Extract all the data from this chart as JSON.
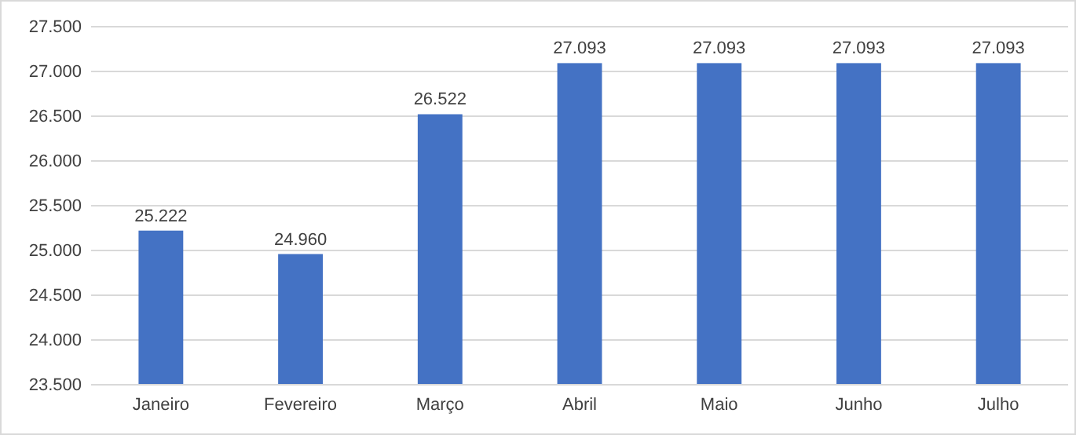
{
  "chart_data": {
    "type": "bar",
    "categories": [
      "Janeiro",
      "Fevereiro",
      "Março",
      "Abril",
      "Maio",
      "Junho",
      "Julho"
    ],
    "values": [
      25222,
      24960,
      26522,
      27093,
      27093,
      27093,
      27093
    ],
    "value_labels": [
      "25.222",
      "24.960",
      "26.522",
      "27.093",
      "27.093",
      "27.093",
      "27.093"
    ],
    "color": "#4472c4",
    "ylim": [
      23500,
      27500
    ],
    "yticks": [
      {
        "value": 23500,
        "label": "23.500"
      },
      {
        "value": 24000,
        "label": "24.000"
      },
      {
        "value": 24500,
        "label": "24.500"
      },
      {
        "value": 25000,
        "label": "25.000"
      },
      {
        "value": 25500,
        "label": "25.500"
      },
      {
        "value": 26000,
        "label": "26.000"
      },
      {
        "value": 26500,
        "label": "26.500"
      },
      {
        "value": 27000,
        "label": "27.000"
      },
      {
        "value": 27500,
        "label": "27.500"
      }
    ],
    "grid": "y"
  }
}
